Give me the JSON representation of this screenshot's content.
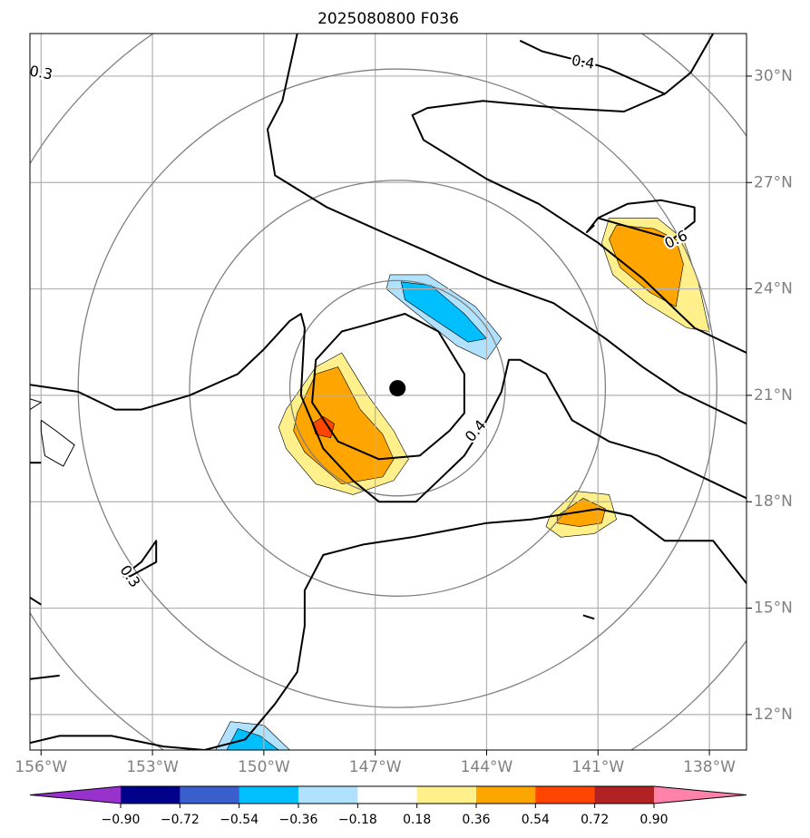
{
  "chart_data": {
    "type": "map",
    "title": "2025080800 F036",
    "projection": "lat-lon",
    "lon_range": [
      -156.3,
      -137.0
    ],
    "lat_range": [
      11.0,
      31.2
    ],
    "xticks": [
      {
        "value": -156,
        "label": "156°W"
      },
      {
        "value": -153,
        "label": "153°W"
      },
      {
        "value": -150,
        "label": "150°W"
      },
      {
        "value": -147,
        "label": "147°W"
      },
      {
        "value": -144,
        "label": "144°W"
      },
      {
        "value": -141,
        "label": "141°W"
      },
      {
        "value": -138,
        "label": "138°W"
      }
    ],
    "yticks": [
      {
        "value": 12,
        "label": "12°N"
      },
      {
        "value": 15,
        "label": "15°N"
      },
      {
        "value": 18,
        "label": "18°N"
      },
      {
        "value": 21,
        "label": "21°N"
      },
      {
        "value": 24,
        "label": "24°N"
      },
      {
        "value": 27,
        "label": "27°N"
      },
      {
        "value": 30,
        "label": "30°N"
      }
    ],
    "grid": true,
    "center_marker": {
      "lon": -146.4,
      "lat": 21.2
    },
    "range_rings_deg": [
      2.9,
      5.6,
      8.6,
      11.6
    ],
    "contour_labels": [
      {
        "text": "0.3",
        "lon": -156.0,
        "lat": 30.1,
        "rotate": 10
      },
      {
        "text": "0.4",
        "lon": -141.4,
        "lat": 30.4,
        "rotate": 10
      },
      {
        "text": "0.6",
        "lon": -138.9,
        "lat": 25.4,
        "rotate": -25
      },
      {
        "text": "0.4",
        "lon": -144.3,
        "lat": 20.0,
        "rotate": -50
      },
      {
        "text": "0.3",
        "lon": -153.6,
        "lat": 15.9,
        "rotate": 55
      }
    ],
    "contour_lines": [
      [
        [
          -156.3,
          21.3
        ],
        [
          -155.0,
          21.1
        ],
        [
          -154.0,
          20.6
        ],
        [
          -153.3,
          20.6
        ],
        [
          -152.0,
          21.0
        ],
        [
          -150.7,
          21.6
        ],
        [
          -150.0,
          22.3
        ],
        [
          -149.3,
          23.1
        ],
        [
          -149.0,
          23.3
        ],
        [
          -148.9,
          22.9
        ],
        [
          -149.0,
          21.0
        ],
        [
          -148.4,
          19.5
        ],
        [
          -147.6,
          18.6
        ],
        [
          -146.9,
          18.0
        ],
        [
          -145.9,
          18.0
        ],
        [
          -145.3,
          18.6
        ],
        [
          -144.6,
          19.3
        ],
        [
          -144.0,
          20.3
        ],
        [
          -143.6,
          21.1
        ],
        [
          -143.4,
          22.0
        ],
        [
          -143.1,
          22.0
        ],
        [
          -142.4,
          21.6
        ],
        [
          -141.7,
          20.3
        ],
        [
          -140.7,
          19.7
        ],
        [
          -139.4,
          19.3
        ],
        [
          -138.0,
          18.6
        ],
        [
          -137.0,
          18.1
        ]
      ],
      [
        [
          -156.3,
          19.1
        ],
        [
          -156.0,
          19.1
        ]
      ],
      [
        [
          -156.3,
          11.2
        ],
        [
          -155.5,
          11.4
        ],
        [
          -154.1,
          11.4
        ],
        [
          -152.7,
          11.1
        ],
        [
          -151.6,
          11.0
        ],
        [
          -150.5,
          11.3
        ],
        [
          -149.7,
          12.3
        ],
        [
          -149.1,
          13.2
        ],
        [
          -148.9,
          14.5
        ],
        [
          -148.9,
          15.5
        ],
        [
          -148.4,
          16.5
        ],
        [
          -147.3,
          16.8
        ],
        [
          -146.0,
          17.0
        ],
        [
          -144.0,
          17.4
        ],
        [
          -142.8,
          17.5
        ],
        [
          -141.0,
          17.8
        ],
        [
          -140.1,
          17.6
        ],
        [
          -139.2,
          16.9
        ],
        [
          -137.9,
          16.9
        ],
        [
          -137.0,
          15.7
        ]
      ],
      [
        [
          -156.3,
          15.3
        ],
        [
          -156.0,
          15.1
        ]
      ],
      [
        [
          -153.8,
          15.9
        ],
        [
          -153.3,
          16.3
        ],
        [
          -152.9,
          16.9
        ],
        [
          -152.9,
          16.3
        ],
        [
          -153.6,
          15.9
        ],
        [
          -153.8,
          15.9
        ]
      ],
      [
        [
          -149.1,
          31.2
        ],
        [
          -149.5,
          29.3
        ],
        [
          -149.9,
          28.5
        ],
        [
          -149.7,
          27.2
        ],
        [
          -148.3,
          26.3
        ],
        [
          -146.8,
          25.6
        ],
        [
          -145.7,
          25.1
        ],
        [
          -143.8,
          24.2
        ],
        [
          -142.2,
          23.6
        ],
        [
          -140.8,
          22.6
        ],
        [
          -139.8,
          21.8
        ],
        [
          -138.8,
          21.1
        ],
        [
          -137.0,
          20.2
        ]
      ],
      [
        [
          -143.1,
          31.0
        ],
        [
          -142.5,
          30.7
        ],
        [
          -141.0,
          30.3
        ],
        [
          -140.7,
          30.2
        ],
        [
          -139.2,
          29.5
        ],
        [
          -138.5,
          30.1
        ],
        [
          -137.9,
          31.2
        ]
      ],
      [
        [
          -137.0,
          22.2
        ],
        [
          -138.4,
          22.9
        ],
        [
          -139.8,
          24.3
        ],
        [
          -141.0,
          25.3
        ],
        [
          -142.6,
          26.4
        ],
        [
          -144.0,
          27.1
        ],
        [
          -145.7,
          28.2
        ],
        [
          -146.0,
          28.9
        ],
        [
          -145.6,
          29.1
        ],
        [
          -144.1,
          29.3
        ],
        [
          -142.0,
          29.1
        ],
        [
          -140.3,
          29.0
        ],
        [
          -139.2,
          29.5
        ]
      ],
      [
        [
          -147.2,
          23.0
        ],
        [
          -146.2,
          23.3
        ],
        [
          -145.3,
          22.8
        ],
        [
          -144.6,
          21.6
        ],
        [
          -144.6,
          20.5
        ],
        [
          -145.0,
          20.0
        ],
        [
          -145.8,
          19.3
        ],
        [
          -146.9,
          19.2
        ],
        [
          -148.0,
          19.7
        ],
        [
          -148.7,
          20.8
        ],
        [
          -148.6,
          22.0
        ],
        [
          -147.9,
          22.8
        ],
        [
          -147.2,
          23.0
        ]
      ],
      [
        [
          -141.0,
          26.0
        ],
        [
          -139.0,
          25.4
        ],
        [
          -138.4,
          25.9
        ],
        [
          -138.4,
          26.3
        ],
        [
          -139.3,
          26.5
        ],
        [
          -140.2,
          26.4
        ],
        [
          -141.0,
          26.0
        ],
        [
          -141.3,
          25.6
        ],
        [
          -141.1,
          25.8
        ]
      ],
      [
        [
          -156.3,
          13.0
        ],
        [
          -155.5,
          13.1
        ]
      ],
      [
        [
          -141.4,
          14.8
        ],
        [
          -141.1,
          14.7
        ]
      ]
    ],
    "shaded_regions": [
      {
        "name": "orange-cell-west",
        "value_range": [
          0.36,
          0.54
        ],
        "polygon": [
          [
            -149.1,
            20.5
          ],
          [
            -148.6,
            21.6
          ],
          [
            -148.0,
            21.8
          ],
          [
            -147.4,
            20.6
          ],
          [
            -146.8,
            19.9
          ],
          [
            -146.5,
            19.2
          ],
          [
            -146.8,
            18.7
          ],
          [
            -147.9,
            18.5
          ],
          [
            -148.9,
            19.4
          ],
          [
            -149.2,
            20.0
          ],
          [
            -149.1,
            20.5
          ]
        ]
      },
      {
        "name": "yellow-cell-west",
        "value_range": [
          0.18,
          0.36
        ],
        "polygon": [
          [
            -149.4,
            20.6
          ],
          [
            -148.6,
            21.8
          ],
          [
            -147.9,
            22.2
          ],
          [
            -147.2,
            21.0
          ],
          [
            -146.5,
            20.0
          ],
          [
            -146.1,
            19.2
          ],
          [
            -146.5,
            18.6
          ],
          [
            -147.6,
            18.2
          ],
          [
            -148.6,
            18.5
          ],
          [
            -149.4,
            19.5
          ],
          [
            -149.6,
            20.1
          ],
          [
            -149.4,
            20.6
          ]
        ]
      },
      {
        "name": "red-spot-west",
        "value_range": [
          0.54,
          0.72
        ],
        "polygon": [
          [
            -148.7,
            20.2
          ],
          [
            -148.4,
            20.4
          ],
          [
            -148.1,
            20.2
          ],
          [
            -148.2,
            19.8
          ],
          [
            -148.6,
            19.9
          ],
          [
            -148.7,
            20.2
          ]
        ]
      },
      {
        "name": "blue-cell-north",
        "value_range": [
          -0.54,
          -0.36
        ],
        "polygon": [
          [
            -146.3,
            24.2
          ],
          [
            -145.5,
            24.1
          ],
          [
            -144.6,
            23.3
          ],
          [
            -144.0,
            22.6
          ],
          [
            -144.5,
            22.5
          ],
          [
            -145.5,
            23.2
          ],
          [
            -146.2,
            23.7
          ],
          [
            -146.3,
            24.2
          ]
        ]
      },
      {
        "name": "lightblue-cell-north",
        "value_range": [
          -0.36,
          -0.18
        ],
        "polygon": [
          [
            -146.6,
            24.4
          ],
          [
            -145.6,
            24.4
          ],
          [
            -144.3,
            23.5
          ],
          [
            -143.6,
            22.6
          ],
          [
            -144.0,
            22.0
          ],
          [
            -144.8,
            22.4
          ],
          [
            -146.0,
            23.4
          ],
          [
            -146.7,
            24.0
          ],
          [
            -146.6,
            24.4
          ]
        ]
      },
      {
        "name": "orange-cell-northeast",
        "value_range": [
          0.36,
          0.54
        ],
        "polygon": [
          [
            -140.5,
            25.8
          ],
          [
            -139.5,
            25.7
          ],
          [
            -138.9,
            25.4
          ],
          [
            -138.7,
            24.7
          ],
          [
            -138.9,
            23.5
          ],
          [
            -139.6,
            23.9
          ],
          [
            -140.4,
            24.6
          ],
          [
            -140.7,
            25.4
          ],
          [
            -140.5,
            25.8
          ]
        ]
      },
      {
        "name": "yellow-cell-northeast",
        "value_range": [
          0.18,
          0.36
        ],
        "polygon": [
          [
            -140.7,
            26.0
          ],
          [
            -139.4,
            26.0
          ],
          [
            -138.7,
            25.4
          ],
          [
            -138.3,
            24.2
          ],
          [
            -138.0,
            22.8
          ],
          [
            -138.6,
            22.9
          ],
          [
            -139.7,
            23.6
          ],
          [
            -140.6,
            24.4
          ],
          [
            -140.9,
            25.3
          ],
          [
            -140.7,
            26.0
          ]
        ]
      },
      {
        "name": "orange-cell-southeast",
        "value_range": [
          0.36,
          0.54
        ],
        "polygon": [
          [
            -142.1,
            17.6
          ],
          [
            -141.4,
            18.1
          ],
          [
            -140.8,
            17.8
          ],
          [
            -140.9,
            17.4
          ],
          [
            -141.5,
            17.3
          ],
          [
            -142.1,
            17.4
          ],
          [
            -142.1,
            17.6
          ]
        ]
      },
      {
        "name": "yellow-cell-southeast",
        "value_range": [
          0.18,
          0.36
        ],
        "polygon": [
          [
            -142.3,
            17.6
          ],
          [
            -141.6,
            18.3
          ],
          [
            -140.7,
            18.2
          ],
          [
            -140.5,
            17.5
          ],
          [
            -141.1,
            17.1
          ],
          [
            -142.0,
            17.0
          ],
          [
            -142.4,
            17.3
          ],
          [
            -142.3,
            17.6
          ]
        ]
      },
      {
        "name": "blue-cell-south",
        "value_range": [
          -0.54,
          -0.36
        ],
        "polygon": [
          [
            -151.0,
            11.0
          ],
          [
            -150.7,
            11.6
          ],
          [
            -150.1,
            11.4
          ],
          [
            -149.6,
            11.0
          ],
          [
            -151.0,
            11.0
          ]
        ]
      },
      {
        "name": "lightblue-cell-south",
        "value_range": [
          -0.36,
          -0.18
        ],
        "polygon": [
          [
            -151.3,
            11.0
          ],
          [
            -150.9,
            11.8
          ],
          [
            -150.0,
            11.7
          ],
          [
            -149.3,
            11.0
          ],
          [
            -151.3,
            11.0
          ]
        ]
      }
    ],
    "coastlines": [
      [
        [
          -156.0,
          20.3
        ],
        [
          -155.6,
          20.0
        ],
        [
          -155.1,
          19.6
        ],
        [
          -155.4,
          19.0
        ],
        [
          -155.9,
          19.3
        ],
        [
          -156.0,
          20.0
        ],
        [
          -156.0,
          20.3
        ]
      ],
      [
        [
          -156.3,
          20.9
        ],
        [
          -156.0,
          20.8
        ],
        [
          -156.3,
          20.6
        ]
      ]
    ],
    "colorbar": {
      "levels": [
        -0.9,
        -0.72,
        -0.54,
        -0.36,
        -0.18,
        0.18,
        0.36,
        0.54,
        0.72,
        0.9
      ],
      "labels": [
        "−0.90",
        "−0.72",
        "−0.54",
        "−0.36",
        "−0.18",
        "0.18",
        "0.36",
        "0.54",
        "0.72",
        "0.90"
      ],
      "colors": [
        "#9932cc",
        "#00008b",
        "#3a5fcd",
        "#00bfff",
        "#b0e2ff",
        "#ffffff",
        "#fff08c",
        "#ffa500",
        "#ff4500",
        "#b22222",
        "#ff82ab"
      ],
      "extend": "both"
    }
  }
}
